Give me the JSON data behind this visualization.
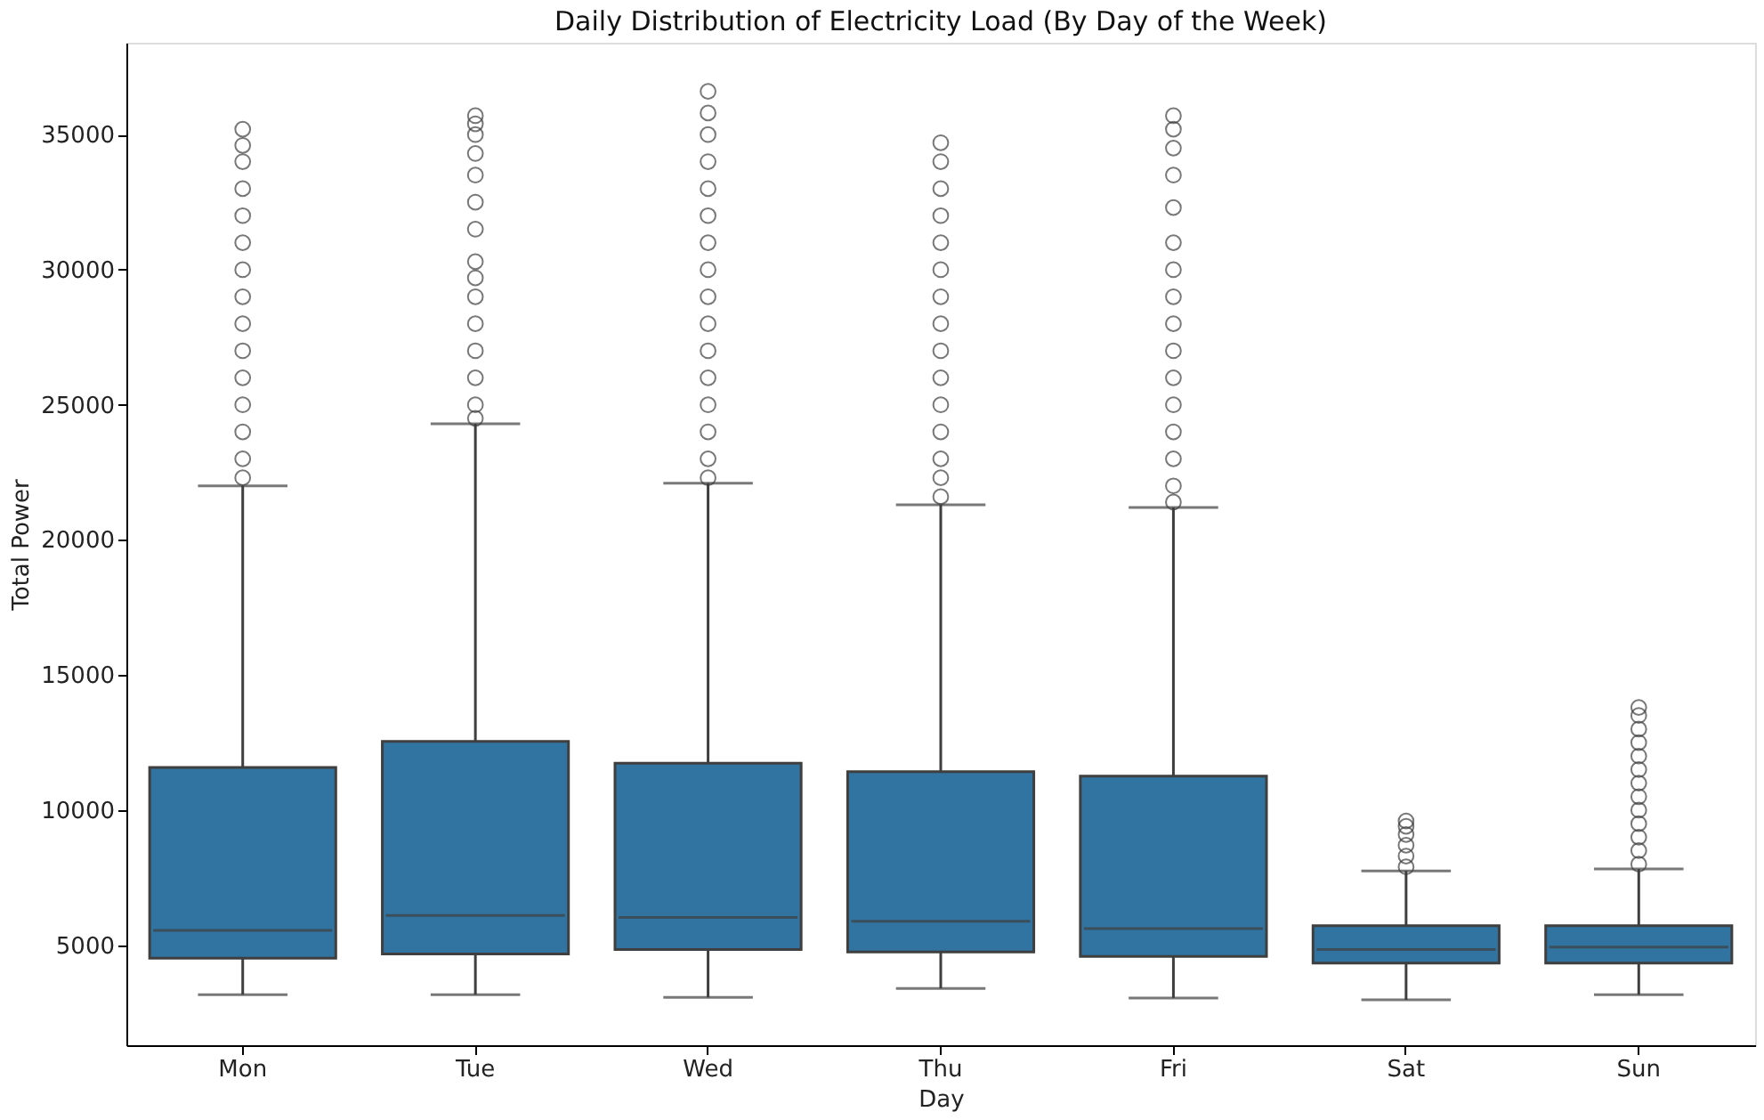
{
  "chart_data": {
    "type": "box",
    "title": "Daily Distribution of Electricity Load (By Day of the Week)",
    "xlabel": "Day",
    "ylabel": "Total Power",
    "categories": [
      "Mon",
      "Tue",
      "Wed",
      "Thu",
      "Fri",
      "Sat",
      "Sun"
    ],
    "ylim": [
      1300,
      38400
    ],
    "yticks": [
      5000,
      10000,
      15000,
      20000,
      25000,
      30000,
      35000
    ],
    "grid": false,
    "series": [
      {
        "color": "#3274a1",
        "boxes": [
          {
            "low": 3170,
            "q1": 4520,
            "median": 5550,
            "q3": 11580,
            "high": 22000,
            "outliers": [
              22300,
              23000,
              24000,
              25000,
              26000,
              27000,
              28000,
              29000,
              30000,
              31000,
              32000,
              33000,
              34000,
              34600,
              35200
            ]
          },
          {
            "low": 3170,
            "q1": 4680,
            "median": 6100,
            "q3": 12540,
            "high": 24300,
            "outliers": [
              24500,
              25000,
              26000,
              27000,
              28000,
              29000,
              29700,
              30300,
              31500,
              32500,
              33500,
              34300,
              35000,
              35400,
              35700
            ]
          },
          {
            "low": 3070,
            "q1": 4840,
            "median": 6030,
            "q3": 11740,
            "high": 22100,
            "outliers": [
              22300,
              23000,
              24000,
              25000,
              26000,
              27000,
              28000,
              29000,
              30000,
              31000,
              32000,
              33000,
              34000,
              35000,
              35800,
              36600
            ]
          },
          {
            "low": 3400,
            "q1": 4750,
            "median": 5890,
            "q3": 11420,
            "high": 21300,
            "outliers": [
              21600,
              22300,
              23000,
              24000,
              25000,
              26000,
              27000,
              28000,
              29000,
              30000,
              31000,
              32000,
              33000,
              34000,
              34700
            ]
          },
          {
            "low": 3050,
            "q1": 4590,
            "median": 5620,
            "q3": 11260,
            "high": 21200,
            "outliers": [
              21400,
              22000,
              23000,
              24000,
              25000,
              26000,
              27000,
              28000,
              29000,
              30000,
              31000,
              32300,
              33500,
              34500,
              35200,
              35700
            ]
          },
          {
            "low": 2980,
            "q1": 4340,
            "median": 4840,
            "q3": 5720,
            "high": 7750,
            "outliers": [
              7900,
              8300,
              8700,
              9100,
              9400,
              9600
            ]
          },
          {
            "low": 3170,
            "q1": 4340,
            "median": 4930,
            "q3": 5720,
            "high": 7820,
            "outliers": [
              8000,
              8500,
              9000,
              9500,
              10000,
              10500,
              11000,
              11500,
              12000,
              12500,
              13000,
              13500,
              13800
            ]
          }
        ]
      }
    ]
  }
}
